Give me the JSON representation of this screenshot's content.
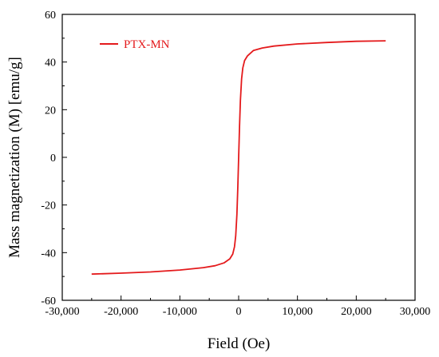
{
  "chart_data": {
    "type": "line",
    "xlabel": "Field (Oe)",
    "ylabel": "Mass magnetization (M) [emu/g]",
    "xlim": [
      -30000,
      30000
    ],
    "ylim": [
      -60,
      60
    ],
    "x_ticks": [
      -30000,
      -20000,
      -10000,
      0,
      10000,
      20000,
      30000
    ],
    "x_tick_labels": [
      "-30,000",
      "-20,000",
      "-10,000",
      "0",
      "10,000",
      "20,000",
      "30,000"
    ],
    "y_ticks": [
      -60,
      -40,
      -20,
      0,
      20,
      40,
      60
    ],
    "y_tick_labels": [
      "-60",
      "-40",
      "-20",
      "0",
      "20",
      "40",
      "60"
    ],
    "grid": false,
    "legend_position": "top-left",
    "series": [
      {
        "name": "PTX-MN",
        "color": "#e41a1c",
        "x": [
          -25000,
          -20000,
          -15000,
          -10000,
          -6000,
          -4000,
          -2500,
          -1500,
          -1000,
          -700,
          -500,
          -300,
          -150,
          0,
          150,
          300,
          500,
          700,
          1000,
          1500,
          2500,
          4000,
          6000,
          10000,
          15000,
          20000,
          25000
        ],
        "y": [
          -49.0,
          -48.6,
          -48.1,
          -47.3,
          -46.3,
          -45.5,
          -44.3,
          -42.6,
          -40.6,
          -37.5,
          -33.0,
          -24.0,
          -13.0,
          0,
          13.0,
          24.0,
          33.0,
          37.5,
          40.6,
          42.6,
          44.8,
          45.9,
          46.7,
          47.6,
          48.2,
          48.7,
          48.9
        ]
      }
    ]
  }
}
